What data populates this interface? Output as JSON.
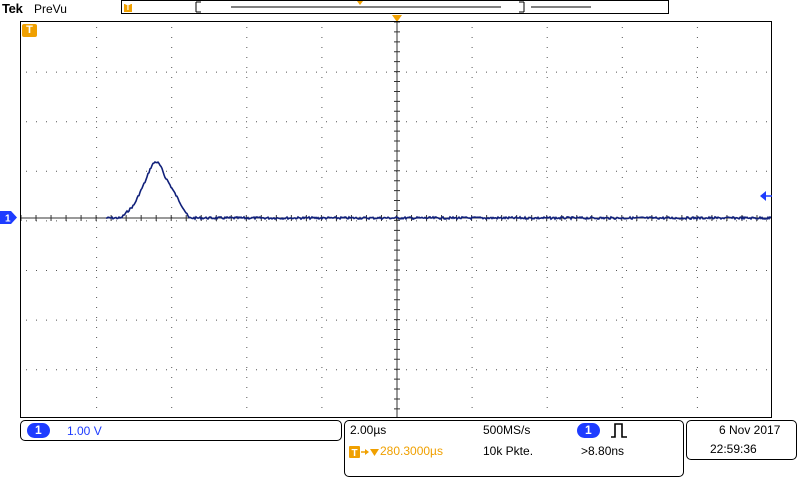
{
  "header": {
    "brand": "Tek",
    "mode": "PreVu",
    "trigger_marker_glyph": "T"
  },
  "display": {
    "channel_marker": "1",
    "trigger_marker_glyph": "T"
  },
  "channel_readout": {
    "channel": "1",
    "scale": "1.00 V"
  },
  "timebase": {
    "time_per_div": "2.00µs",
    "sample_rate": "500MS/s",
    "trigger_delay": "280.3000µs",
    "record_length": "10k Pkte.",
    "trigger_source": "1",
    "trigger_type_icon": "pulse-icon",
    "trigger_condition": ">8.80ns"
  },
  "datetime": {
    "date": "6 Nov 2017",
    "time": "22:59:36"
  },
  "colors": {
    "trace": "#10207a",
    "channel": "#1e3cff",
    "trigger": "#f0a000"
  }
}
